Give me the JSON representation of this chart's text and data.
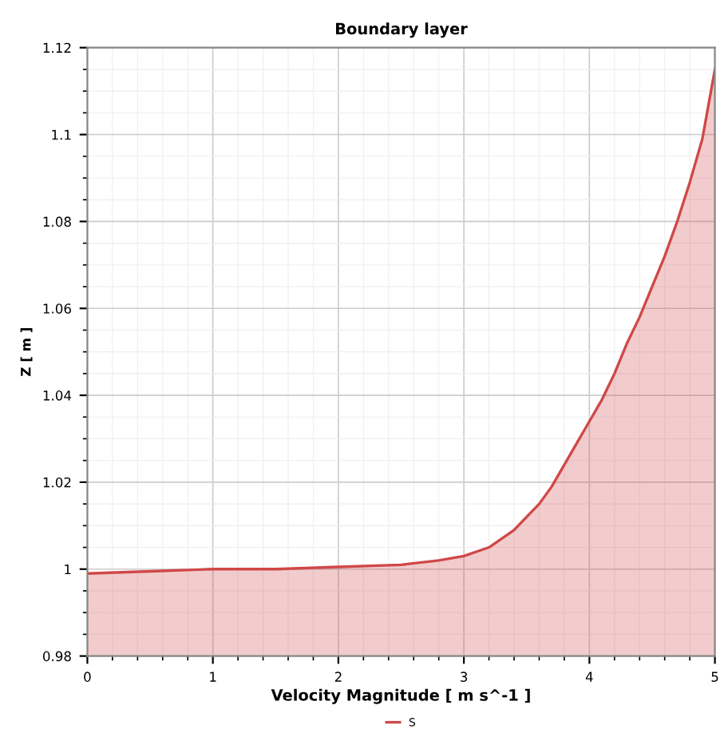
{
  "chart_data": {
    "type": "area",
    "title": "Boundary layer",
    "xlabel": "Velocity Magnitude [ m s^-1 ]",
    "ylabel": "Z [ m ]",
    "x": [
      0,
      0.5,
      1,
      1.5,
      2,
      2.5,
      2.8,
      3,
      3.2,
      3.4,
      3.5,
      3.6,
      3.7,
      3.8,
      3.9,
      4,
      4.1,
      4.2,
      4.3,
      4.4,
      4.5,
      4.6,
      4.7,
      4.8,
      4.9,
      5
    ],
    "series": [
      {
        "name": "S",
        "color": "#d04848",
        "values": [
          0.999,
          0.9995,
          1.0,
          1.0,
          1.0005,
          1.001,
          1.002,
          1.003,
          1.005,
          1.009,
          1.012,
          1.015,
          1.019,
          1.024,
          1.029,
          1.034,
          1.039,
          1.045,
          1.052,
          1.058,
          1.065,
          1.072,
          1.08,
          1.089,
          1.099,
          1.115
        ]
      }
    ],
    "xlim": [
      0,
      5
    ],
    "ylim": [
      0.98,
      1.12
    ],
    "xticks": [
      0,
      1,
      2,
      3,
      4,
      5
    ],
    "yticks": [
      0.98,
      1,
      1.02,
      1.04,
      1.06,
      1.08,
      1.1,
      1.12
    ],
    "grid": true,
    "legend": "bottom"
  }
}
